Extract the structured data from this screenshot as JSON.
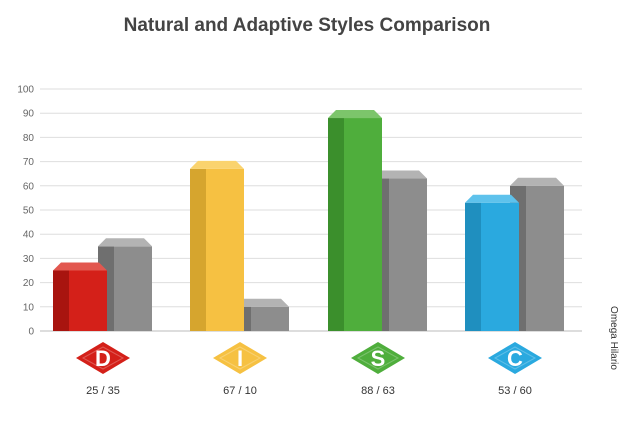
{
  "chart_data": {
    "type": "bar",
    "title": "Natural and Adaptive Styles Comparison",
    "side_label": "Omega Hilario",
    "ylim": [
      0,
      100
    ],
    "yticks": [
      0,
      10,
      20,
      30,
      40,
      50,
      60,
      70,
      80,
      90,
      100
    ],
    "grid": true,
    "categories": [
      {
        "letter": "D",
        "natural": 25,
        "adaptive": 35,
        "label": "25 / 35",
        "color": "#d42019",
        "dark": "#a8140f",
        "top": "#e2574f"
      },
      {
        "letter": "I",
        "natural": 67,
        "adaptive": 10,
        "label": "67 / 10",
        "color": "#f6c142",
        "dark": "#d6a52e",
        "top": "#fad36e"
      },
      {
        "letter": "S",
        "natural": 88,
        "adaptive": 63,
        "label": "88 / 63",
        "color": "#4fae3c",
        "dark": "#3b8f2c",
        "top": "#7cc56b"
      },
      {
        "letter": "C",
        "natural": 53,
        "adaptive": 60,
        "label": "53 / 60",
        "color": "#2aa9df",
        "dark": "#1f8fbf",
        "top": "#5ec2ec"
      }
    ],
    "adaptive_colors": {
      "front": "#8d8d8d",
      "dark": "#6f6f6f",
      "top": "#b3b3b3"
    }
  }
}
